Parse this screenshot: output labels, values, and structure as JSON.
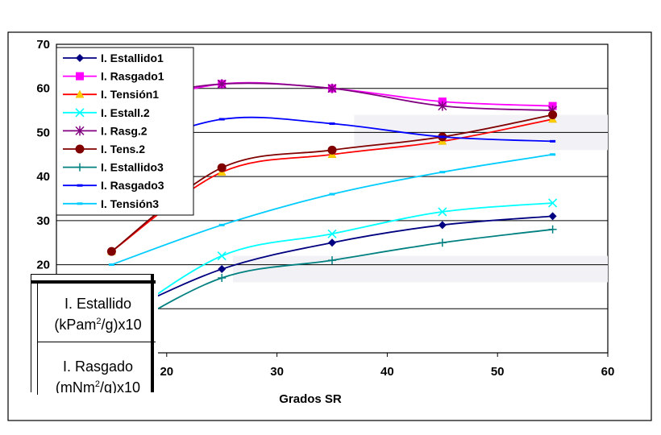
{
  "chart_data": {
    "type": "line",
    "title": "",
    "xlabel": "Grados SR",
    "ylabel": "",
    "xlim": [
      10,
      60
    ],
    "ylim": [
      0,
      70
    ],
    "xticks": [
      20,
      30,
      40,
      50,
      60
    ],
    "yticks": [
      20,
      30,
      40,
      50,
      60,
      70
    ],
    "grid": "horizontal",
    "legend_position": "top-left",
    "x": [
      15,
      25,
      35,
      45,
      55
    ],
    "series": [
      {
        "name": "I. Estallido1",
        "values": [
          8,
          19,
          25,
          29,
          31
        ],
        "color": "#000080",
        "marker": "diamond"
      },
      {
        "name": "I. Rasgado1",
        "values": [
          55,
          61,
          60,
          57,
          56
        ],
        "color": "#ff00ff",
        "marker": "square"
      },
      {
        "name": "I. Tensión1",
        "values": [
          23,
          41,
          45,
          48,
          53
        ],
        "color": "#ff0000",
        "marker": "triangle"
      },
      {
        "name": "I. Estall.2",
        "values": [
          6,
          22,
          27,
          32,
          34
        ],
        "color": "#00ffff",
        "marker": "x"
      },
      {
        "name": "I. Rasg.2",
        "values": [
          57,
          61,
          60,
          56,
          55
        ],
        "color": "#800080",
        "marker": "star"
      },
      {
        "name": "I. Tens.2",
        "values": [
          23,
          42,
          46,
          49,
          54
        ],
        "color": "#800000",
        "marker": "circle"
      },
      {
        "name": "I. Estallido3",
        "values": [
          4,
          17,
          21,
          25,
          28
        ],
        "color": "#008080",
        "marker": "plus"
      },
      {
        "name": "I. Rasgado3",
        "values": [
          45,
          53,
          52,
          49,
          48
        ],
        "color": "#0000ff",
        "marker": "dash"
      },
      {
        "name": "I. Tensión3",
        "values": [
          20,
          29,
          36,
          41,
          45
        ],
        "color": "#00ccff",
        "marker": "dash"
      }
    ]
  },
  "overlay": {
    "line1": "I. Estallido",
    "line2a": "(kPam",
    "line2sup": "2",
    "line2b": "/g)x10",
    "line3": "I. Rasgado",
    "line4a": "(mNm",
    "line4sup": "2",
    "line4b": "/g)x10"
  }
}
